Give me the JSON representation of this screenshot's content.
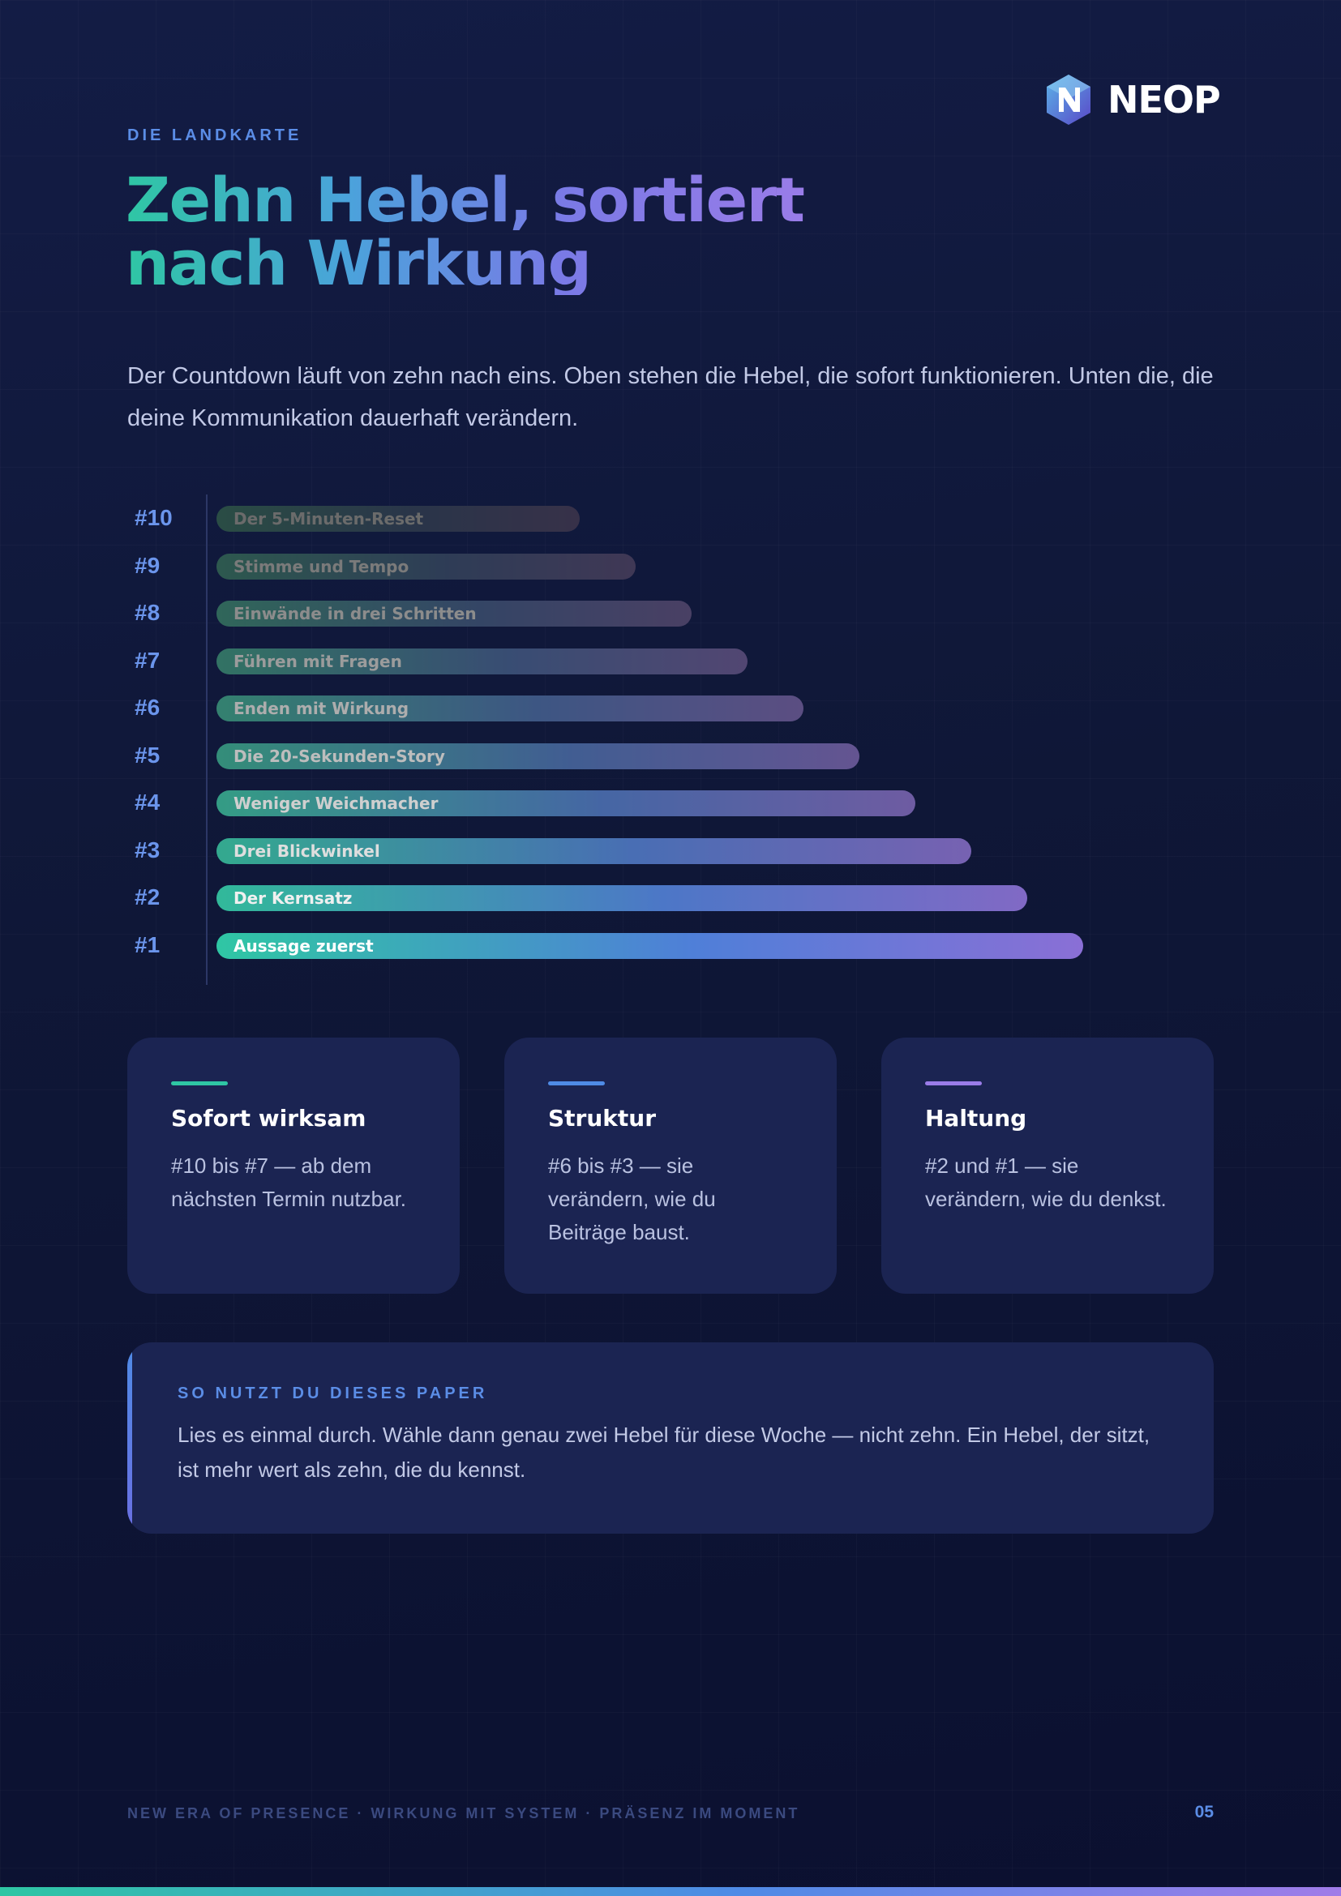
{
  "brand": {
    "name": "NEOP"
  },
  "eyebrow": "DIE LANDKARTE",
  "title": {
    "line1": "Zehn Hebel, sortiert",
    "line2": "nach Wirkung"
  },
  "intro": "Der Countdown läuft von zehn nach eins. Oben stehen die Hebel, die sofort funktionieren. Unten die, die deine Kommunikation dauerhaft verändern.",
  "chart_data": {
    "type": "bar",
    "orientation": "horizontal",
    "categories": [
      "#10",
      "#9",
      "#8",
      "#7",
      "#6",
      "#5",
      "#4",
      "#3",
      "#2",
      "#1"
    ],
    "labels": [
      "Der 5-Minuten-Reset",
      "Stimme und Tempo",
      "Einwände in drei Schritten",
      "Führen mit Fragen",
      "Enden mit Wirkung",
      "Die 20-Sekunden-Story",
      "Weniger Weichmacher",
      "Drei Blickwinkel",
      "Der Kernsatz",
      "Aussage zuerst"
    ],
    "values": [
      1,
      2,
      3,
      4,
      5,
      6,
      7,
      8,
      9,
      10
    ],
    "colors": {
      "start": "#2fc6a4",
      "mid": "#4f7fd8",
      "end": "#8a6fd6"
    }
  },
  "cards": [
    {
      "title": "Sofort wirksam",
      "text": "#10 bis #7 — ab dem nächsten Termin nutzbar.",
      "accent": "#2fc6a4"
    },
    {
      "title": "Struktur",
      "text": "#6 bis #3 — sie verändern, wie du Beiträge baust.",
      "accent": "#4f8be6"
    },
    {
      "title": "Haltung",
      "text": "#2 und #1 — sie verändern, wie du denkst.",
      "accent": "#9a7ce8"
    }
  ],
  "note": {
    "label": "SO NUTZT DU DIESES PAPER",
    "text": "Lies es einmal durch. Wähle dann genau zwei Hebel für diese Woche — nicht zehn. Ein Hebel, der sitzt, ist mehr wert als zehn, die du kennst."
  },
  "footer": {
    "tagline": "NEW ERA OF PRESENCE · WIRKUNG MIT SYSTEM · PRÄSENZ IM MOMENT",
    "page": "05"
  }
}
